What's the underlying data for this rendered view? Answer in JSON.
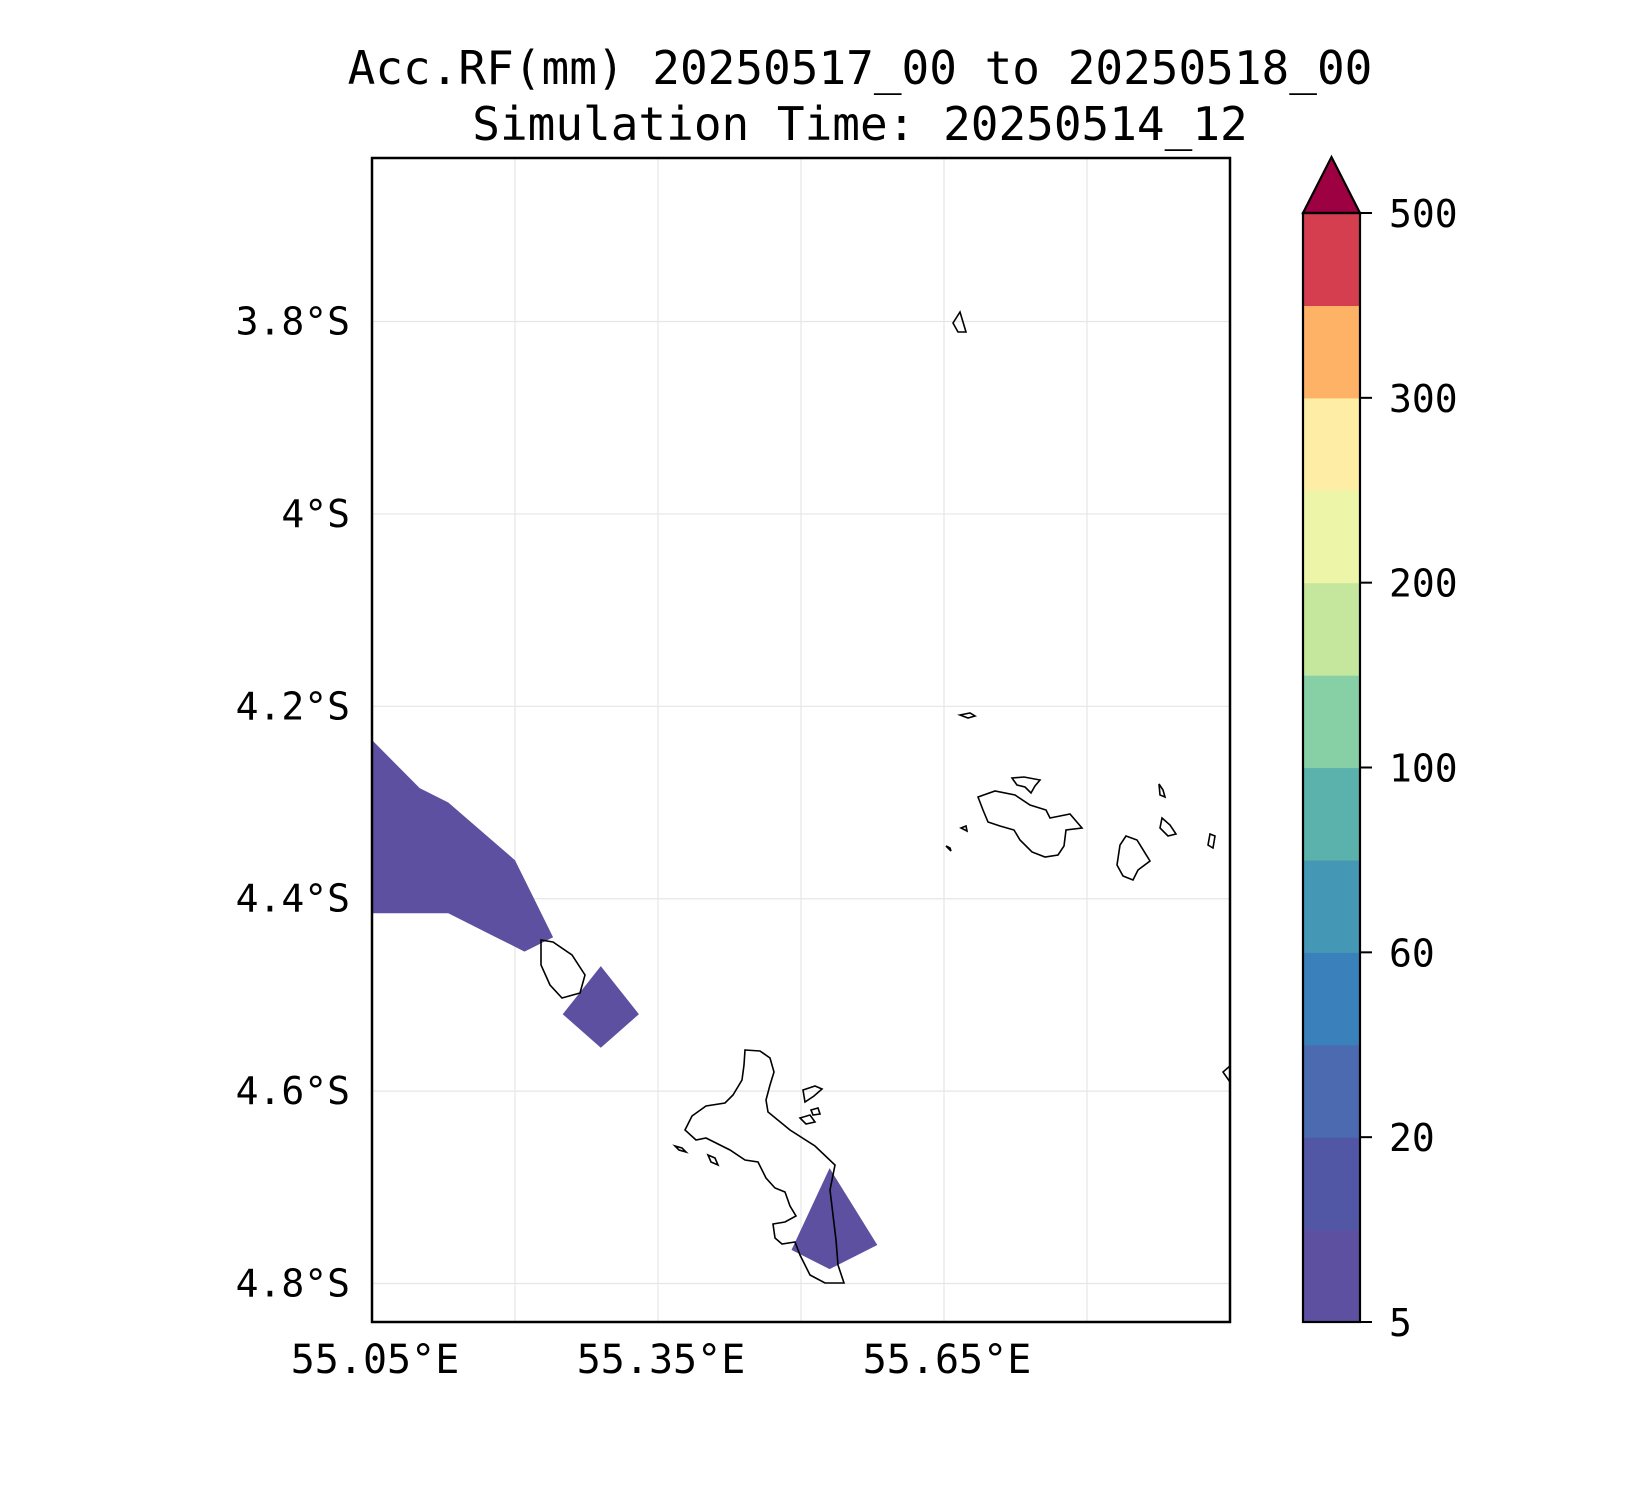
{
  "title": {
    "line1": "Acc.RF(mm) 20250517_00 to 20250518_00",
    "line2": "Simulation Time: 20250514_12"
  },
  "map": {
    "lon_range": [
      55.05,
      55.95
    ],
    "lat_range": [
      -4.84,
      -3.63
    ],
    "y_ticks": [
      {
        "lat": -3.8,
        "label": "3.8°S"
      },
      {
        "lat": -4.0,
        "label": "4°S"
      },
      {
        "lat": -4.2,
        "label": "4.2°S"
      },
      {
        "lat": -4.4,
        "label": "4.4°S"
      },
      {
        "lat": -4.6,
        "label": "4.6°S"
      },
      {
        "lat": -4.8,
        "label": "4.8°S"
      }
    ],
    "x_ticks": [
      {
        "lon": 55.05,
        "label": "55.05°E"
      },
      {
        "lon": 55.35,
        "label": "55.35°E"
      },
      {
        "lon": 55.65,
        "label": "55.65°E"
      }
    ],
    "grid_lons": [
      55.2,
      55.35,
      55.5,
      55.65,
      55.8
    ],
    "grid_lats": [
      -3.8,
      -4.0,
      -4.2,
      -4.4,
      -4.6,
      -4.8
    ],
    "grid": true,
    "rain_color": "#5e50a1"
  },
  "colorbar": {
    "colors": [
      "#5e50a1",
      "#5257a5",
      "#4b6aaf",
      "#3a81bb",
      "#4498b6",
      "#5bb1ab",
      "#87cfa4",
      "#c4e69d",
      "#ecf5a8",
      "#feeea5",
      "#fdb265",
      "#d53e4f"
    ],
    "extend_color": "#9e0142",
    "ticks": [
      "5",
      "20",
      "60",
      "100",
      "200",
      "300",
      "500"
    ],
    "tick_positions": [
      0,
      2,
      4,
      6,
      8,
      10,
      12
    ]
  },
  "chart_data": {
    "type": "heatmap",
    "title": "Acc.RF(mm) 20250517_00 to 20250518_00\nSimulation Time: 20250514_12",
    "xlabel": "",
    "ylabel": "",
    "xlim": [
      55.05,
      55.95
    ],
    "ylim": [
      -4.84,
      -3.63
    ],
    "colorbar_levels": [
      5,
      10,
      20,
      40,
      60,
      80,
      100,
      150,
      200,
      250,
      300,
      400,
      500
    ],
    "colorbar_extend": "max",
    "rain_regions": [
      {
        "level": "5-10 mm",
        "polygon_lonlat": [
          [
            55.05,
            -4.235
          ],
          [
            55.08,
            -4.265
          ],
          [
            55.1,
            -4.285
          ],
          [
            55.13,
            -4.3
          ],
          [
            55.2,
            -4.36
          ],
          [
            55.24,
            -4.44
          ],
          [
            55.21,
            -4.455
          ],
          [
            55.18,
            -4.44
          ],
          [
            55.13,
            -4.415
          ],
          [
            55.08,
            -4.415
          ],
          [
            55.05,
            -4.415
          ]
        ]
      },
      {
        "level": "5-10 mm",
        "polygon_lonlat": [
          [
            55.29,
            -4.47
          ],
          [
            55.33,
            -4.52
          ],
          [
            55.29,
            -4.555
          ],
          [
            55.25,
            -4.52
          ]
        ]
      },
      {
        "level": "5-10 mm",
        "polygon_lonlat": [
          [
            55.53,
            -4.68
          ],
          [
            55.58,
            -4.76
          ],
          [
            55.53,
            -4.785
          ],
          [
            55.49,
            -4.765
          ]
        ]
      }
    ]
  }
}
